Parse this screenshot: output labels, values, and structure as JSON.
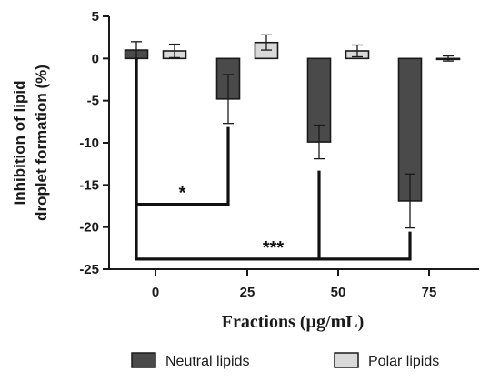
{
  "chart_data": {
    "type": "bar",
    "categories": [
      "0",
      "25",
      "50",
      "75"
    ],
    "series": [
      {
        "name": "Neutral lipids",
        "values": [
          1.0,
          -4.8,
          -9.9,
          -16.9
        ],
        "errors": [
          1.0,
          2.9,
          2.0,
          3.2
        ],
        "color": "#4a4a4a"
      },
      {
        "name": "Polar lipids",
        "values": [
          0.9,
          1.9,
          0.9,
          0.0
        ],
        "errors": [
          0.8,
          0.9,
          0.7,
          0.3
        ],
        "color": "#d9d9d9"
      }
    ],
    "title": "",
    "xlabel": "Fractions (µg/mL)",
    "ylabel_lines": [
      "Inhibition of lipid",
      "droplet formation (%)"
    ],
    "yticks": [
      "5",
      "0",
      "-5",
      "-10",
      "-15",
      "-20",
      "-25"
    ],
    "ylim": [
      -25,
      5
    ],
    "grid": false,
    "legend_position": "bottom",
    "significance": [
      {
        "label": "*",
        "from_category": "0",
        "to_category": "25",
        "bracket_y": -17.3
      },
      {
        "label": "***",
        "from_category": "0",
        "to_category": "75",
        "bracket_y": -23.8
      }
    ]
  }
}
